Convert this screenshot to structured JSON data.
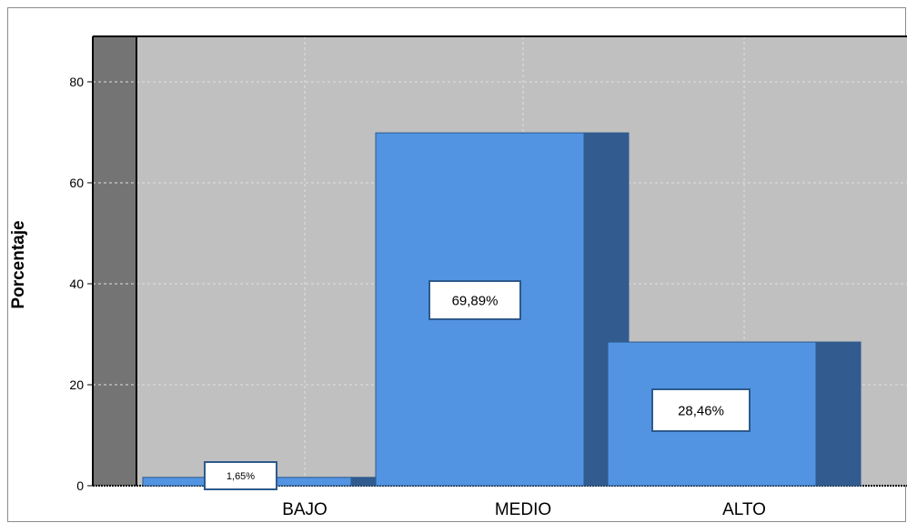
{
  "chart_data": {
    "type": "bar",
    "title": "",
    "xlabel": "",
    "ylabel": "Porcentaje",
    "categories": [
      "BAJO",
      "MEDIO",
      "ALTO"
    ],
    "values": [
      1.65,
      69.89,
      28.46
    ],
    "data_labels": [
      "1,65%",
      "69,89%",
      "28,46%"
    ],
    "y_ticks": [
      0,
      20,
      40,
      60,
      80
    ],
    "y_tick_labels": [
      "0",
      "20",
      "40",
      "60",
      "80"
    ],
    "ylim": [
      0,
      89
    ],
    "grid": true,
    "legend": "none",
    "style": "3d-bars",
    "colors": {
      "bar_front": "#5294e2",
      "bar_side": "#325c8f",
      "plot_background": "#c0c0c0",
      "left_wall": "#747474",
      "grid": "#e0e0e0"
    }
  }
}
